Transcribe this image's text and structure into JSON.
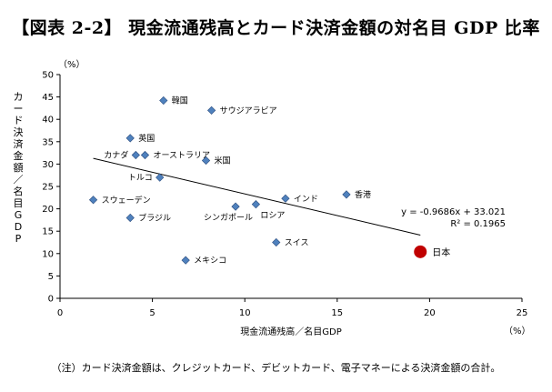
{
  "title": "【図表 2-2】 現金流通残高とカード決済金額の対名目 GDP 比率",
  "note": "（注）カード決済金額は、クレジットカード、デビットカード、電子マネーによる決済金額の合計。",
  "chart_data": {
    "type": "scatter",
    "xlabel": "現金流通残高／名目GDP",
    "ylabel": "カード決済金額／名目GDP",
    "x_unit": "（%）",
    "y_unit": "（%）",
    "xlim": [
      0,
      25
    ],
    "ylim": [
      0,
      50
    ],
    "xticks": [
      0,
      5,
      10,
      15,
      20,
      25
    ],
    "yticks": [
      0,
      5,
      10,
      15,
      20,
      25,
      30,
      35,
      40,
      45,
      50
    ],
    "grid": false,
    "points": [
      {
        "name": "韓国",
        "x": 5.6,
        "y": 44.2
      },
      {
        "name": "サウジアラビア",
        "x": 8.2,
        "y": 42.0
      },
      {
        "name": "英国",
        "x": 3.8,
        "y": 35.8
      },
      {
        "name": "カナダ",
        "x": 4.1,
        "y": 32.0
      },
      {
        "name": "オーストラリア",
        "x": 4.6,
        "y": 32.0
      },
      {
        "name": "米国",
        "x": 7.9,
        "y": 30.8
      },
      {
        "name": "トルコ",
        "x": 5.4,
        "y": 27.0
      },
      {
        "name": "スウェーデン",
        "x": 1.8,
        "y": 22.0
      },
      {
        "name": "シンガポール",
        "x": 9.5,
        "y": 20.5
      },
      {
        "name": "ロシア",
        "x": 10.6,
        "y": 21.0
      },
      {
        "name": "インド",
        "x": 12.2,
        "y": 22.3
      },
      {
        "name": "香港",
        "x": 15.5,
        "y": 23.2
      },
      {
        "name": "ブラジル",
        "x": 3.8,
        "y": 18.0
      },
      {
        "name": "スイス",
        "x": 11.7,
        "y": 12.5
      },
      {
        "name": "メキシコ",
        "x": 6.8,
        "y": 8.5
      }
    ],
    "highlight": {
      "name": "日本",
      "x": 19.5,
      "y": 10.4
    },
    "trendline": {
      "slope": -0.9686,
      "intercept": 33.021,
      "x_from": 1.8,
      "x_to": 19.5
    },
    "equation": "y = -0.9686x + 33.021",
    "r_squared": "R² = 0.1965",
    "colors": {
      "marker": "#4f81bd",
      "marker_edge": "#2f4f7f",
      "highlight": "#c00000",
      "trendline": "#000000"
    }
  }
}
